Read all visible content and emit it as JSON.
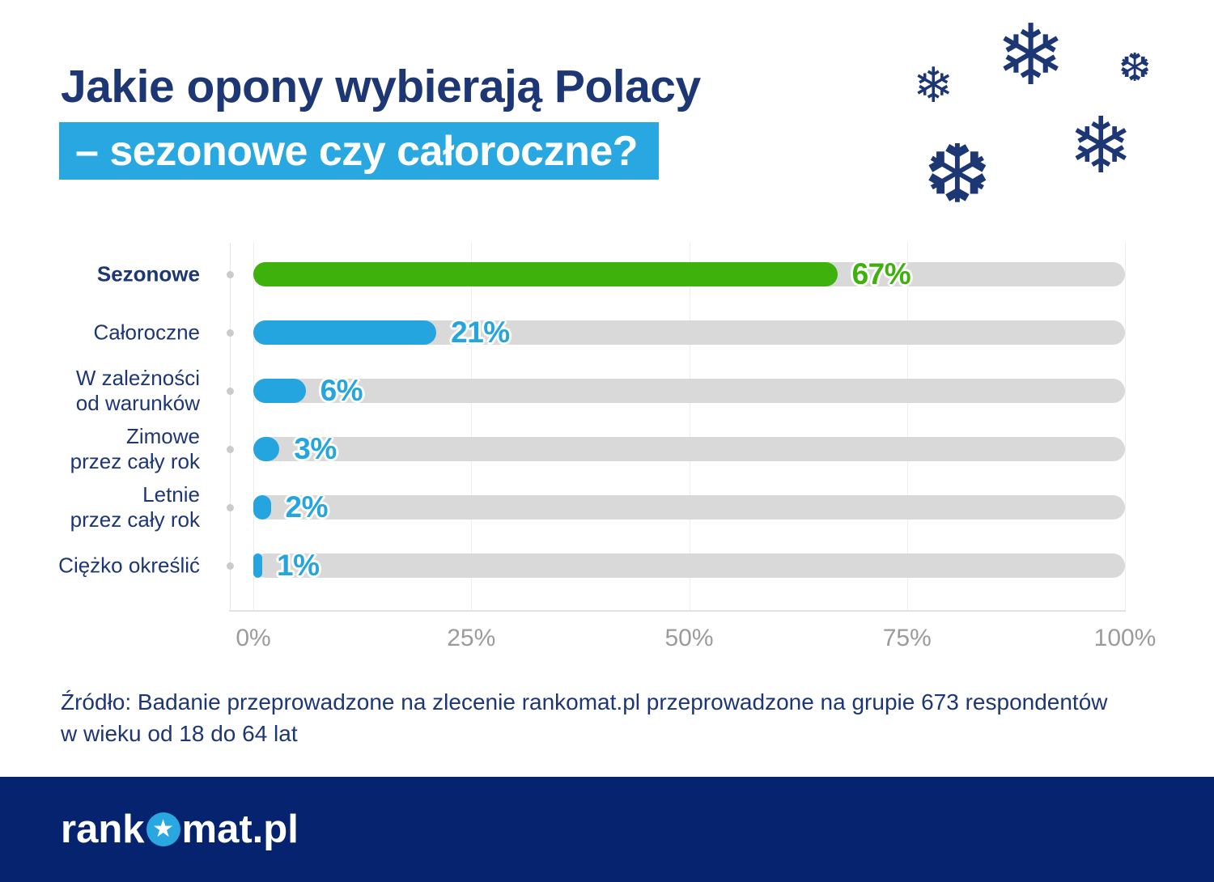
{
  "header": {
    "title_line1": "Jakie opony wybierają Polacy",
    "title_line2": "– sezonowe czy całoroczne?"
  },
  "decorations": {
    "snowflakes": [
      {
        "name": "snowflake-small-left",
        "glyph": "❄"
      },
      {
        "name": "snowflake-large-top",
        "glyph": "❄"
      },
      {
        "name": "snowflake-small-right",
        "glyph": "❆"
      },
      {
        "name": "snowflake-medium-left",
        "glyph": "❆"
      },
      {
        "name": "snowflake-large-right",
        "glyph": "❄"
      }
    ]
  },
  "chart_data": {
    "type": "bar",
    "orientation": "horizontal",
    "categories": [
      "Sezonowe",
      "Całoroczne",
      "W zależności\nod warunków",
      "Zimowe\nprzez cały rok",
      "Letnie\nprzez cały rok",
      "Ciężko określić"
    ],
    "values": [
      67,
      21,
      6,
      3,
      2,
      1
    ],
    "value_labels": [
      "67%",
      "21%",
      "6%",
      "3%",
      "2%",
      "1%"
    ],
    "series_colors": [
      "#3EB10C",
      "#25A5DF",
      "#25A5DF",
      "#25A5DF",
      "#25A5DF",
      "#25A5DF"
    ],
    "highlight_index": 0,
    "xlim": [
      0,
      100
    ],
    "x_tick_values": [
      0,
      25,
      50,
      75,
      100
    ],
    "x_tick_labels": [
      "0%",
      "25%",
      "50%",
      "75%",
      "100%"
    ],
    "grid": true,
    "track_color": "#D9D9D9",
    "track_full_value": 100
  },
  "source_note": "Źródło: Badanie przeprowadzone na zlecenie rankomat.pl przeprowadzone na grupie 673 respondentów\nw wieku od 18 do 64 lat",
  "footer": {
    "logo_prefix": "rank",
    "logo_star": "★",
    "logo_suffix": "mat.pl"
  },
  "colors": {
    "navy_text": "#1D3674",
    "footer_bg": "#062370",
    "highlight_bg": "#29A7E0",
    "green": "#3EB10C",
    "blue": "#25A5DF",
    "track": "#D9D9D9",
    "axis_label_gray": "#9B9B9B"
  }
}
